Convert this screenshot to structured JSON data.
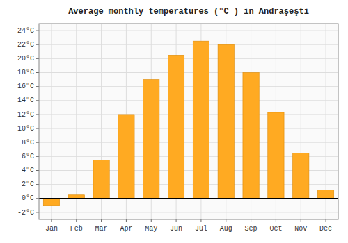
{
  "chart_data": {
    "type": "bar",
    "title": "Average monthly temperatures (°C ) in Andrăşeşti",
    "categories": [
      "Jan",
      "Feb",
      "Mar",
      "Apr",
      "May",
      "Jun",
      "Jul",
      "Aug",
      "Sep",
      "Oct",
      "Nov",
      "Dec"
    ],
    "values": [
      -1.0,
      0.5,
      5.5,
      12.0,
      17.0,
      20.5,
      22.5,
      22.0,
      18.0,
      12.3,
      6.5,
      1.2
    ],
    "color": "#FFAA22",
    "ylim": [
      -3,
      25
    ],
    "yticks": [
      {
        "value": -2,
        "label": "-2°C"
      },
      {
        "value": 0,
        "label": "0°C"
      },
      {
        "value": 2,
        "label": "2°C"
      },
      {
        "value": 4,
        "label": "4°C"
      },
      {
        "value": 6,
        "label": "6°C"
      },
      {
        "value": 8,
        "label": "8°C"
      },
      {
        "value": 10,
        "label": "10°C"
      },
      {
        "value": 12,
        "label": "12°C"
      },
      {
        "value": 14,
        "label": "14°C"
      },
      {
        "value": 16,
        "label": "16°C"
      },
      {
        "value": 18,
        "label": "18°C"
      },
      {
        "value": 20,
        "label": "20°C"
      },
      {
        "value": 22,
        "label": "22°C"
      },
      {
        "value": 24,
        "label": "24°C"
      }
    ],
    "grid": true
  }
}
